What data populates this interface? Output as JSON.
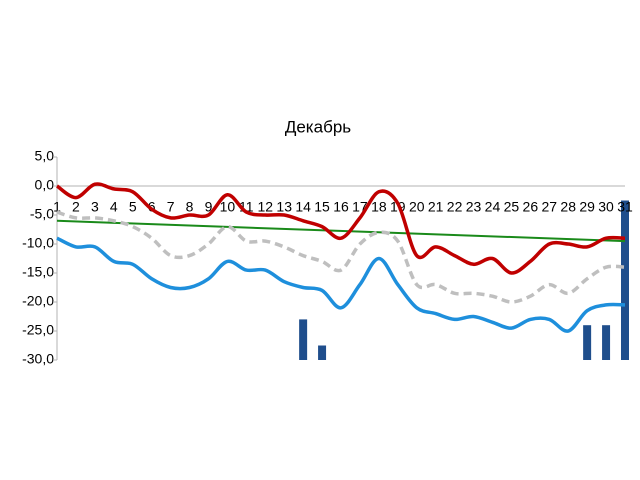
{
  "chart_data": {
    "type": "line",
    "title": "Декабрь",
    "categories": [
      "1",
      "2",
      "3",
      "4",
      "5",
      "6",
      "7",
      "8",
      "9",
      "10",
      "11",
      "12",
      "13",
      "14",
      "15",
      "16",
      "17",
      "18",
      "19",
      "20",
      "21",
      "22",
      "23",
      "24",
      "25",
      "26",
      "27",
      "28",
      "29",
      "30",
      "31"
    ],
    "series": [
      {
        "color": "#bfbfbf",
        "dashed": true,
        "values": [
          -4.5,
          -5.5,
          -5.5,
          -6,
          -7,
          -9,
          -12,
          -12,
          -10,
          -7,
          -9.5,
          -9.5,
          -10.5,
          -12,
          -13,
          -14.5,
          -10,
          -8,
          -9.5,
          -17,
          -17,
          -18.5,
          -18.5,
          -19,
          -20,
          -19,
          -17,
          -18.5,
          -16,
          -14,
          -14
        ]
      },
      {
        "color": "#c00000",
        "values": [
          0,
          -2,
          0.3,
          -0.5,
          -1,
          -4,
          -5.5,
          -5,
          -5,
          -1.5,
          -4.5,
          -5,
          -5,
          -6,
          -7,
          -9,
          -5.5,
          -1,
          -3,
          -12,
          -10.5,
          -12,
          -13.5,
          -12.5,
          -15,
          -13,
          -10,
          -10,
          -10.5,
          -9,
          -9
        ]
      },
      {
        "color": "#1e8fdc",
        "values": [
          -9,
          -10.5,
          -10.5,
          -13,
          -13.5,
          -16,
          -17.5,
          -17.5,
          -16,
          -13,
          -14.5,
          -14.5,
          -16.5,
          -17.5,
          -18,
          -21,
          -17,
          -12.5,
          -17,
          -21,
          -22,
          -23,
          -22.5,
          -23.5,
          -24.5,
          -23,
          -23,
          -25,
          -21.5,
          -20.5,
          -20.5
        ]
      }
    ],
    "bars": {
      "color": "#1f4e8c",
      "values": [
        null,
        null,
        null,
        null,
        null,
        null,
        null,
        null,
        null,
        null,
        null,
        null,
        null,
        -23,
        -27.5,
        null,
        null,
        null,
        null,
        null,
        null,
        null,
        null,
        null,
        null,
        null,
        null,
        null,
        -24,
        -24,
        -2.5
      ]
    },
    "trendline": {
      "color": "#1a8a1a",
      "values": [
        -6,
        -9.5
      ]
    },
    "ylim": [
      -30,
      5
    ],
    "yticks": [
      {
        "value": -30,
        "label": "-30,0"
      },
      {
        "value": -25,
        "label": "-25,0"
      },
      {
        "value": -20,
        "label": "-20,0"
      },
      {
        "value": -15,
        "label": "-15,0"
      },
      {
        "value": -10,
        "label": "-10,0"
      },
      {
        "value": -5,
        "label": "-5,0"
      },
      {
        "value": 0,
        "label": "0,0"
      },
      {
        "value": 5,
        "label": "5,0"
      }
    ],
    "grid": false
  }
}
